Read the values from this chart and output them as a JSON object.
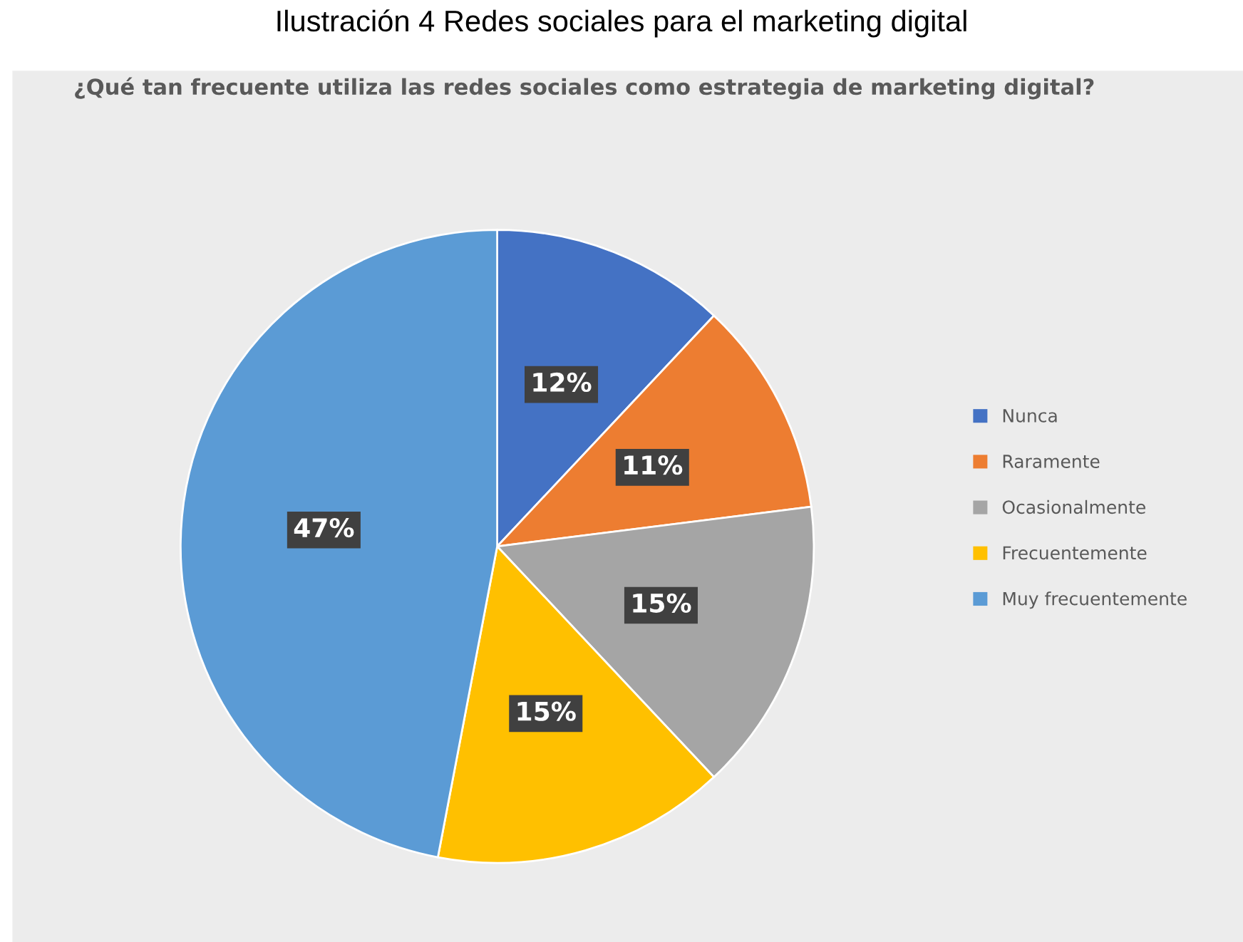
{
  "chart_data": {
    "type": "pie",
    "title": "Ilustración 4 Redes sociales para el marketing digital",
    "subtitle": "¿Qué tan frecuente utiliza las redes sociales como estrategia de marketing digital?",
    "categories": [
      "Nunca",
      "Raramente",
      "Ocasionalmente",
      "Frecuentemente",
      "Muy frecuentemente"
    ],
    "values": [
      12,
      11,
      15,
      15,
      47
    ],
    "value_labels": [
      "12%",
      "11%",
      "15%",
      "15%",
      "47%"
    ],
    "colors": [
      "#4472c4",
      "#ed7d31",
      "#a5a5a5",
      "#ffc000",
      "#5b9bd5"
    ],
    "legend": "right"
  }
}
